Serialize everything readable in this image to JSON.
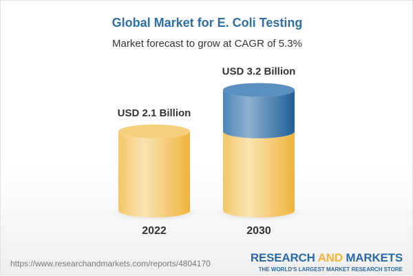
{
  "title": "Global Market for E. Coli Testing",
  "subtitle": "Market forecast to grow at CAGR of 5.3%",
  "chart_data": {
    "type": "bar",
    "style": "3d-cylinder",
    "categories": [
      "2022",
      "2030"
    ],
    "values": [
      2.1,
      3.2
    ],
    "data_labels": [
      "USD 2.1 Billion",
      "USD 3.2 Billion"
    ],
    "unit": "USD Billion",
    "colors": {
      "base": "#f2c45e",
      "growth": "#3d79ad"
    }
  },
  "footer": {
    "url": "https://www.researchandmarkets.com/reports/4804170",
    "logo_part1": "RESEARCH ",
    "logo_part2": "AND",
    "logo_part3": " MARKETS",
    "tagline": "THE WORLD'S LARGEST MARKET RESEARCH STORE"
  }
}
